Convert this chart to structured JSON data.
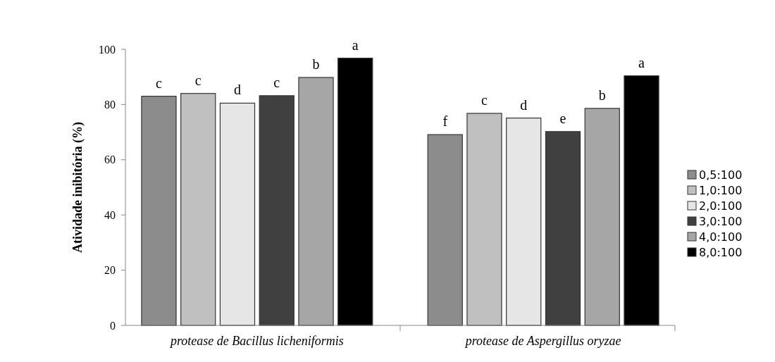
{
  "chart_data": {
    "type": "bar",
    "ylabel": "Atividade inibitória (%)",
    "categories": [
      "protease de Bacillus licheniformis",
      "protease de Aspergillus oryzae"
    ],
    "series": [
      {
        "name": "0,5:100",
        "color": "#8c8c8c",
        "values": [
          83.0,
          69.1
        ],
        "value_labels": [
          "c",
          "f"
        ]
      },
      {
        "name": "1,0:100",
        "color": "#c0c0c0",
        "values": [
          84.0,
          76.8
        ],
        "value_labels": [
          "c",
          "c"
        ]
      },
      {
        "name": "2,0:100",
        "color": "#e6e6e6",
        "values": [
          80.5,
          75.1
        ],
        "value_labels": [
          "d",
          "d"
        ]
      },
      {
        "name": "3,0:100",
        "color": "#404040",
        "values": [
          83.2,
          70.2
        ],
        "value_labels": [
          "c",
          "e"
        ]
      },
      {
        "name": "4,0:100",
        "color": "#a6a6a6",
        "values": [
          89.8,
          78.6
        ],
        "value_labels": [
          "b",
          "b"
        ]
      },
      {
        "name": "8,0:100",
        "color": "#000000",
        "values": [
          96.8,
          90.4
        ],
        "value_labels": [
          "a",
          "a"
        ]
      }
    ],
    "ylim": [
      0,
      100
    ],
    "yticks": [
      0,
      20,
      40,
      60,
      80,
      100
    ],
    "grid": false,
    "legend": "right"
  }
}
